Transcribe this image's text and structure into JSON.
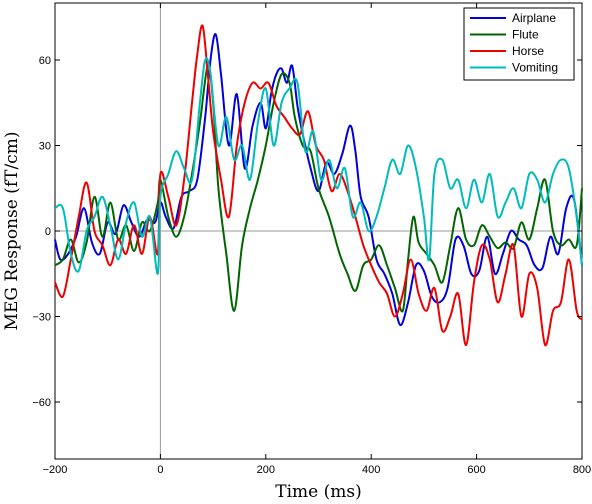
{
  "chart_data": {
    "type": "line",
    "xlabel": "Time (ms)",
    "ylabel": "MEG Response (fT/cm)",
    "xlim": [
      -200,
      800
    ],
    "ylim": [
      -80,
      80
    ],
    "xticks": [
      -200,
      0,
      200,
      400,
      600,
      800
    ],
    "yticks": [
      -60,
      -30,
      0,
      30,
      60
    ],
    "xtick_labels": [
      "−200",
      "0",
      "200",
      "400",
      "600",
      "800"
    ],
    "ytick_labels": [
      "−60",
      "−30",
      "0",
      "30",
      "60"
    ],
    "grid": false,
    "reference_lines": {
      "x": 0,
      "y": 0
    },
    "legend_position": "top-right",
    "series": [
      {
        "name": "Airplane",
        "color": "#0000dd",
        "x": [
          -200,
          -190,
          -175,
          -160,
          -145,
          -130,
          -115,
          -100,
          -85,
          -70,
          -55,
          -40,
          -25,
          -10,
          0,
          10,
          25,
          40,
          55,
          70,
          85,
          95,
          105,
          115,
          130,
          145,
          160,
          175,
          190,
          200,
          210,
          220,
          230,
          240,
          250,
          260,
          270,
          285,
          300,
          315,
          330,
          345,
          360,
          370,
          380,
          395,
          410,
          425,
          440,
          455,
          470,
          485,
          500,
          515,
          530,
          545,
          560,
          575,
          590,
          605,
          620,
          635,
          650,
          665,
          680,
          695,
          710,
          725,
          740,
          755,
          770,
          785,
          800
        ],
        "values": [
          -3,
          -10,
          -8,
          -2,
          8,
          -4,
          -8,
          3,
          -1,
          9,
          3,
          -2,
          4,
          3,
          10,
          5,
          1,
          12,
          14,
          18,
          40,
          60,
          69,
          55,
          30,
          48,
          22,
          37,
          45,
          36,
          48,
          55,
          57,
          52,
          58,
          44,
          34,
          22,
          14,
          24,
          20,
          27,
          37,
          28,
          12,
          5,
          -10,
          -15,
          -22,
          -33,
          -25,
          -12,
          -14,
          -23,
          -25,
          -20,
          -3,
          -5,
          -15,
          -14,
          -2,
          -15,
          -8,
          0,
          -3,
          -5,
          -12,
          -13,
          -2,
          -8,
          8,
          11,
          -12
        ]
      },
      {
        "name": "Flute",
        "color": "#006600",
        "x": [
          -200,
          -185,
          -170,
          -155,
          -140,
          -125,
          -110,
          -95,
          -80,
          -65,
          -50,
          -35,
          -20,
          -5,
          0,
          15,
          30,
          45,
          60,
          75,
          90,
          100,
          110,
          125,
          140,
          155,
          170,
          185,
          200,
          215,
          230,
          245,
          255,
          270,
          285,
          300,
          320,
          340,
          355,
          370,
          385,
          400,
          415,
          430,
          445,
          460,
          470,
          480,
          490,
          505,
          520,
          535,
          550,
          565,
          580,
          595,
          610,
          625,
          640,
          655,
          670,
          685,
          700,
          715,
          730,
          745,
          760,
          775,
          790,
          800
        ],
        "values": [
          -12,
          -10,
          -3,
          -11,
          -4,
          12,
          -2,
          10,
          -3,
          2,
          -7,
          3,
          0,
          10,
          18,
          5,
          -2,
          5,
          20,
          38,
          58,
          45,
          15,
          -8,
          -28,
          -5,
          8,
          18,
          30,
          45,
          55,
          52,
          40,
          30,
          28,
          15,
          5,
          -8,
          -15,
          -21,
          -12,
          -10,
          -5,
          -12,
          -20,
          -28,
          -10,
          5,
          -4,
          -8,
          -12,
          -18,
          -5,
          8,
          -3,
          -5,
          2,
          -2,
          -6,
          -4,
          -6,
          3,
          -3,
          8,
          18,
          0,
          -5,
          -3,
          -5,
          15
        ]
      },
      {
        "name": "Horse",
        "color": "#ee0000",
        "x": [
          -200,
          -185,
          -170,
          -155,
          -140,
          -125,
          -110,
          -95,
          -80,
          -65,
          -50,
          -35,
          -20,
          -5,
          0,
          15,
          30,
          45,
          60,
          70,
          80,
          90,
          100,
          115,
          130,
          145,
          160,
          175,
          190,
          205,
          220,
          235,
          250,
          265,
          280,
          295,
          310,
          325,
          340,
          355,
          370,
          385,
          400,
          415,
          430,
          445,
          460,
          475,
          490,
          505,
          520,
          535,
          550,
          565,
          580,
          595,
          610,
          625,
          640,
          655,
          670,
          685,
          700,
          715,
          730,
          745,
          760,
          775,
          790,
          800
        ],
        "values": [
          -18,
          -23,
          -10,
          5,
          17,
          0,
          -5,
          -12,
          -3,
          -8,
          2,
          -8,
          5,
          -8,
          20,
          12,
          2,
          18,
          45,
          62,
          72,
          55,
          35,
          18,
          5,
          30,
          45,
          52,
          50,
          52,
          44,
          40,
          36,
          34,
          42,
          30,
          25,
          14,
          20,
          14,
          5,
          -5,
          -12,
          -18,
          -22,
          -30,
          -22,
          -10,
          -22,
          -28,
          -20,
          -35,
          -30,
          -22,
          -40,
          -18,
          -5,
          -10,
          -25,
          -15,
          -5,
          -30,
          -15,
          -20,
          -40,
          -28,
          -25,
          -10,
          -28,
          -31
        ]
      },
      {
        "name": "Vomiting",
        "color": "#00bbbb",
        "x": [
          -200,
          -185,
          -170,
          -155,
          -140,
          -125,
          -110,
          -95,
          -80,
          -65,
          -50,
          -35,
          -20,
          -5,
          0,
          15,
          30,
          45,
          60,
          75,
          85,
          95,
          110,
          125,
          140,
          155,
          170,
          185,
          200,
          215,
          230,
          245,
          260,
          275,
          290,
          305,
          320,
          335,
          350,
          365,
          380,
          395,
          410,
          425,
          440,
          455,
          470,
          485,
          500,
          510,
          520,
          535,
          550,
          565,
          580,
          595,
          610,
          625,
          640,
          655,
          670,
          685,
          700,
          715,
          730,
          745,
          760,
          775,
          790,
          800
        ],
        "values": [
          8,
          8,
          -8,
          -14,
          0,
          5,
          12,
          2,
          -10,
          3,
          10,
          -2,
          5,
          -15,
          12,
          20,
          28,
          22,
          18,
          45,
          60,
          55,
          30,
          40,
          25,
          30,
          18,
          38,
          50,
          30,
          45,
          50,
          52,
          28,
          35,
          18,
          25,
          15,
          22,
          5,
          10,
          0,
          5,
          15,
          25,
          20,
          30,
          22,
          5,
          -10,
          20,
          25,
          15,
          18,
          8,
          18,
          10,
          20,
          5,
          10,
          15,
          8,
          20,
          18,
          10,
          20,
          25,
          22,
          5,
          -12
        ]
      }
    ]
  }
}
